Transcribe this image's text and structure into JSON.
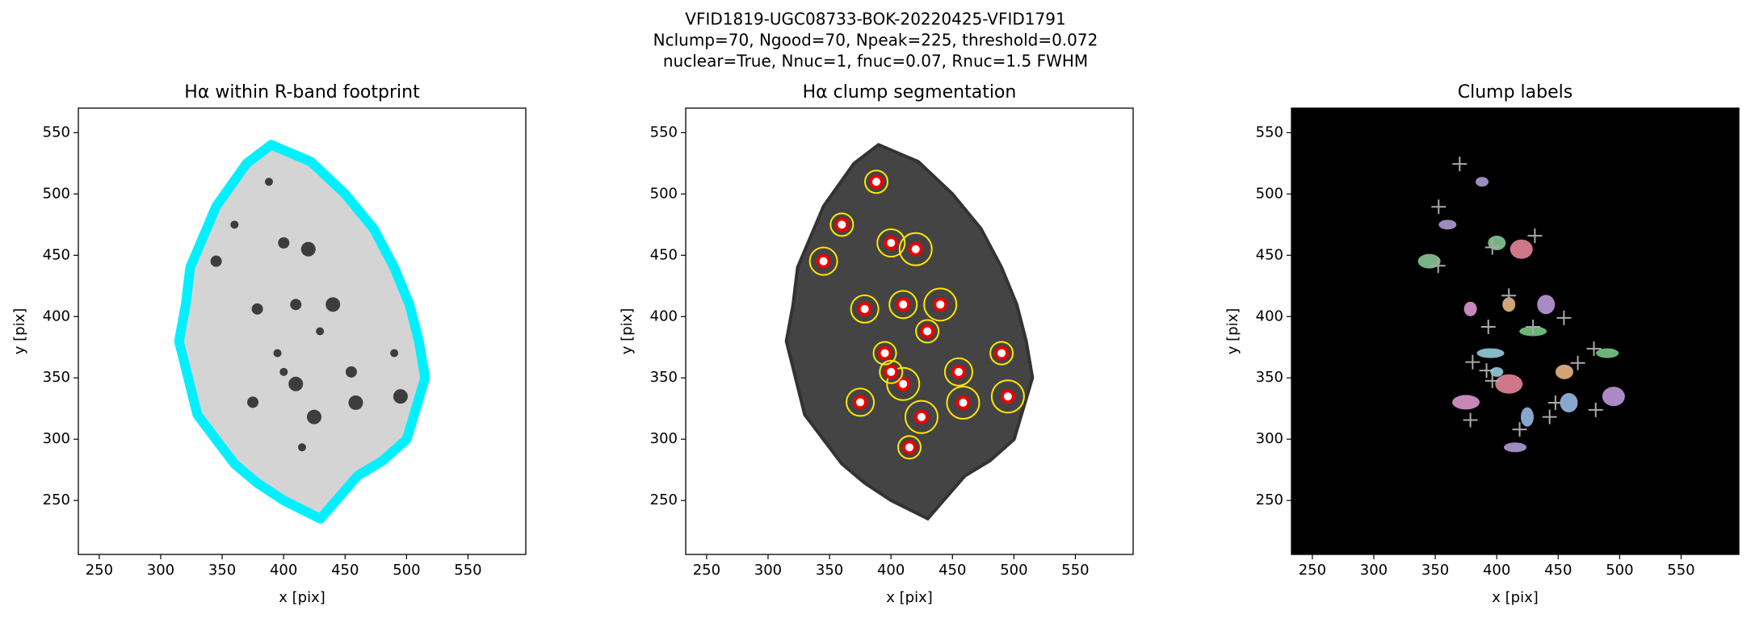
{
  "title": [
    "VFID1819-UGC08733-BOK-20220425-VFID1791",
    "Nclump=70, Ngood=70, Npeak=225, threshold=0.072",
    "nuclear=True, Nnuc=1, fnuc=0.07, Rnuc=1.5 FWHM"
  ],
  "chart_data": [
    {
      "type": "image",
      "title": "Hα within R-band footprint",
      "xlabel": "x [pix]",
      "ylabel": "y [pix]",
      "xlim": [
        233,
        597
      ],
      "ylim": [
        206,
        570
      ],
      "xticks": [
        250,
        300,
        350,
        400,
        450,
        500,
        550
      ],
      "yticks": [
        250,
        300,
        350,
        400,
        450,
        500,
        550
      ]
    },
    {
      "type": "image",
      "title": "Hα clump segmentation",
      "xlabel": "x [pix]",
      "ylabel": "y [pix]",
      "xlim": [
        233,
        597
      ],
      "ylim": [
        206,
        570
      ],
      "xticks": [
        250,
        300,
        350,
        400,
        450,
        500,
        550
      ],
      "yticks": [
        250,
        300,
        350,
        400,
        450,
        500,
        550
      ]
    },
    {
      "type": "image",
      "title": "Clump labels",
      "xlabel": "x [pix]",
      "ylabel": "y [pix]",
      "xlim": [
        233,
        597
      ],
      "ylim": [
        206,
        570
      ],
      "xticks": [
        250,
        300,
        350,
        400,
        450,
        500,
        550
      ],
      "yticks": [
        250,
        300,
        350,
        400,
        450,
        500,
        550
      ]
    }
  ]
}
